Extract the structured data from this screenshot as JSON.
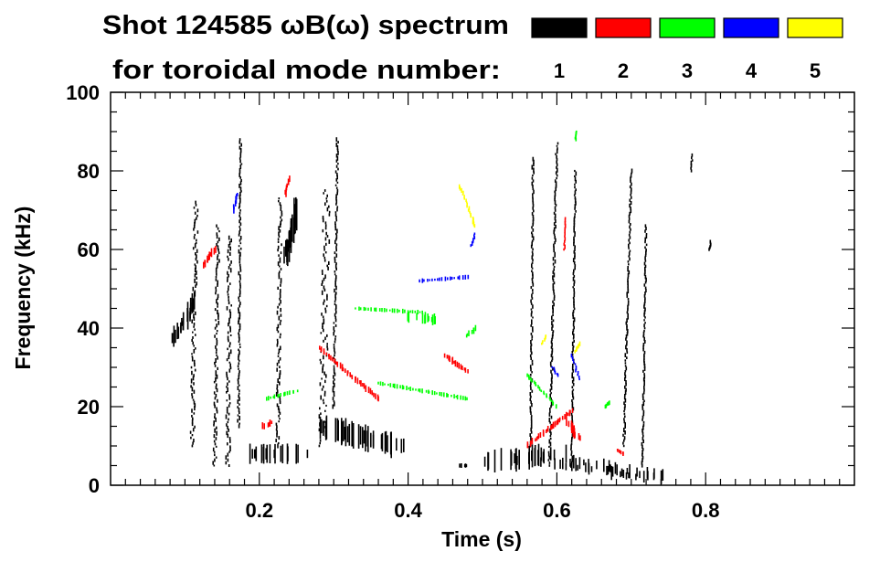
{
  "chart_data": {
    "type": "scatter",
    "title_line1": "Shot 124585 ωB(ω) spectrum",
    "title_line2": "for toroidal mode number:",
    "xlabel": "Time (s)",
    "ylabel": "Frequency (kHz)",
    "xlim": [
      0.0,
      1.0
    ],
    "ylim": [
      0,
      100
    ],
    "x_ticks": [
      0.2,
      0.4,
      0.6,
      0.8
    ],
    "x_tick_labels": [
      "0.2",
      "0.4",
      "0.6",
      "0.8"
    ],
    "y_ticks": [
      0,
      20,
      40,
      60,
      80,
      100
    ],
    "y_tick_labels": [
      "0",
      "20",
      "40",
      "60",
      "80",
      "100"
    ],
    "legend": [
      {
        "label": "1",
        "color": "#000000"
      },
      {
        "label": "2",
        "color": "#ff0000"
      },
      {
        "label": "3",
        "color": "#00ff00"
      },
      {
        "label": "4",
        "color": "#0000ff"
      },
      {
        "label": "5",
        "color": "#ffff00"
      }
    ],
    "series": [
      {
        "name": "n=1",
        "color": "#000000",
        "segments": [
          {
            "x": [
              0.085,
              0.1,
              0.115
            ],
            "y": [
              37,
              43,
              47
            ],
            "w": 0.018,
            "t": 8
          },
          {
            "x": [
              0.11,
              0.115
            ],
            "y": [
              10,
              72
            ],
            "w": 0.012,
            "t": 2
          },
          {
            "x": [
              0.14,
              0.145
            ],
            "y": [
              5,
              66
            ],
            "w": 0.01,
            "t": 2
          },
          {
            "x": [
              0.158,
              0.16
            ],
            "y": [
              5,
              63
            ],
            "w": 0.012,
            "t": 2
          },
          {
            "x": [
              0.172,
              0.175
            ],
            "y": [
              15,
              88
            ],
            "w": 0.006,
            "t": 2
          },
          {
            "x": [
              0.185,
              0.25
            ],
            "y": [
              8,
              8
            ],
            "w": 0.06,
            "t": 9
          },
          {
            "x": [
              0.225,
              0.228
            ],
            "y": [
              10,
              73
            ],
            "w": 0.01,
            "t": 2
          },
          {
            "x": [
              0.235,
              0.25
            ],
            "y": [
              58,
              70
            ],
            "w": 0.012,
            "t": 14
          },
          {
            "x": [
              0.28,
              0.39
            ],
            "y": [
              15,
              10
            ],
            "w": 0.03,
            "t": 12
          },
          {
            "x": [
              0.285,
              0.29
            ],
            "y": [
              10,
              75
            ],
            "w": 0.02,
            "t": 2
          },
          {
            "x": [
              0.3,
              0.305
            ],
            "y": [
              20,
              88
            ],
            "w": 0.006,
            "t": 2
          },
          {
            "x": [
              0.47,
              0.48
            ],
            "y": [
              5,
              5
            ],
            "w": 0.01,
            "t": 2
          },
          {
            "x": [
              0.515,
              0.6
            ],
            "y": [
              6,
              8
            ],
            "w": 0.085,
            "t": 10
          },
          {
            "x": [
              0.6,
              0.74
            ],
            "y": [
              6,
              2
            ],
            "w": 0.14,
            "t": 6
          },
          {
            "x": [
              0.565,
              0.568
            ],
            "y": [
              10,
              83
            ],
            "w": 0.005,
            "t": 2
          },
          {
            "x": [
              0.59,
              0.6
            ],
            "y": [
              5,
              87
            ],
            "w": 0.006,
            "t": 2
          },
          {
            "x": [
              0.62,
              0.625
            ],
            "y": [
              5,
              80
            ],
            "w": 0.005,
            "t": 2
          },
          {
            "x": [
              0.69,
              0.7
            ],
            "y": [
              10,
              80
            ],
            "w": 0.005,
            "t": 2
          },
          {
            "x": [
              0.715,
              0.72
            ],
            "y": [
              5,
              66
            ],
            "w": 0.005,
            "t": 2
          },
          {
            "x": [
              0.78,
              0.782
            ],
            "y": [
              80,
              84
            ],
            "w": 0.004,
            "t": 2
          },
          {
            "x": [
              0.805,
              0.807
            ],
            "y": [
              60,
              62
            ],
            "w": 0.003,
            "t": 2
          }
        ]
      },
      {
        "name": "n=2",
        "color": "#ff0000",
        "segments": [
          {
            "x": [
              0.125,
              0.14
            ],
            "y": [
              56,
              60
            ],
            "w": 0.006,
            "t": 4
          },
          {
            "x": [
              0.205,
              0.22
            ],
            "y": [
              15,
              16
            ],
            "w": 0.014,
            "t": 3
          },
          {
            "x": [
              0.235,
              0.24
            ],
            "y": [
              74,
              78
            ],
            "w": 0.004,
            "t": 3
          },
          {
            "x": [
              0.28,
              0.36
            ],
            "y": [
              35,
              22
            ],
            "w": 0.006,
            "t": 3
          },
          {
            "x": [
              0.45,
              0.48
            ],
            "y": [
              33,
              29
            ],
            "w": 0.006,
            "t": 3
          },
          {
            "x": [
              0.56,
              0.62
            ],
            "y": [
              10,
              19
            ],
            "w": 0.006,
            "t": 3
          },
          {
            "x": [
              0.615,
              0.63
            ],
            "y": [
              16,
              12
            ],
            "w": 0.012,
            "t": 5
          },
          {
            "x": [
              0.68,
              0.69
            ],
            "y": [
              9,
              8
            ],
            "w": 0.006,
            "t": 2
          },
          {
            "x": [
              0.61,
              0.612
            ],
            "y": [
              60,
              68
            ],
            "w": 0.003,
            "t": 2
          }
        ]
      },
      {
        "name": "n=3",
        "color": "#00ff00",
        "segments": [
          {
            "x": [
              0.21,
              0.25
            ],
            "y": [
              22,
              24
            ],
            "w": 0.006,
            "t": 2
          },
          {
            "x": [
              0.33,
              0.42
            ],
            "y": [
              45,
              44
            ],
            "w": 0.004,
            "t": 2
          },
          {
            "x": [
              0.4,
              0.44
            ],
            "y": [
              43,
              42
            ],
            "w": 0.04,
            "t": 5
          },
          {
            "x": [
              0.36,
              0.48
            ],
            "y": [
              26,
              22
            ],
            "w": 0.006,
            "t": 2
          },
          {
            "x": [
              0.48,
              0.49
            ],
            "y": [
              38,
              40
            ],
            "w": 0.008,
            "t": 3
          },
          {
            "x": [
              0.56,
              0.6
            ],
            "y": [
              28,
              20
            ],
            "w": 0.006,
            "t": 2
          },
          {
            "x": [
              0.665,
              0.67
            ],
            "y": [
              20,
              21
            ],
            "w": 0.004,
            "t": 2
          },
          {
            "x": [
              0.625,
              0.627
            ],
            "y": [
              88,
              90
            ],
            "w": 0.003,
            "t": 2
          }
        ]
      },
      {
        "name": "n=4",
        "color": "#0000ff",
        "segments": [
          {
            "x": [
              0.165,
              0.17
            ],
            "y": [
              70,
              74
            ],
            "w": 0.004,
            "t": 3
          },
          {
            "x": [
              0.415,
              0.48
            ],
            "y": [
              52,
              53
            ],
            "w": 0.004,
            "t": 2
          },
          {
            "x": [
              0.485,
              0.49
            ],
            "y": [
              61,
              64
            ],
            "w": 0.004,
            "t": 2
          },
          {
            "x": [
              0.595,
              0.6
            ],
            "y": [
              30,
              28
            ],
            "w": 0.006,
            "t": 2
          },
          {
            "x": [
              0.62,
              0.63
            ],
            "y": [
              33,
              27
            ],
            "w": 0.006,
            "t": 2
          }
        ]
      },
      {
        "name": "n=5",
        "color": "#ffff00",
        "segments": [
          {
            "x": [
              0.47,
              0.49
            ],
            "y": [
              76,
              66
            ],
            "w": 0.005,
            "t": 2
          },
          {
            "x": [
              0.58,
              0.585
            ],
            "y": [
              36,
              38
            ],
            "w": 0.004,
            "t": 2
          },
          {
            "x": [
              0.625,
              0.63
            ],
            "y": [
              34,
              36
            ],
            "w": 0.004,
            "t": 2
          }
        ]
      }
    ]
  }
}
